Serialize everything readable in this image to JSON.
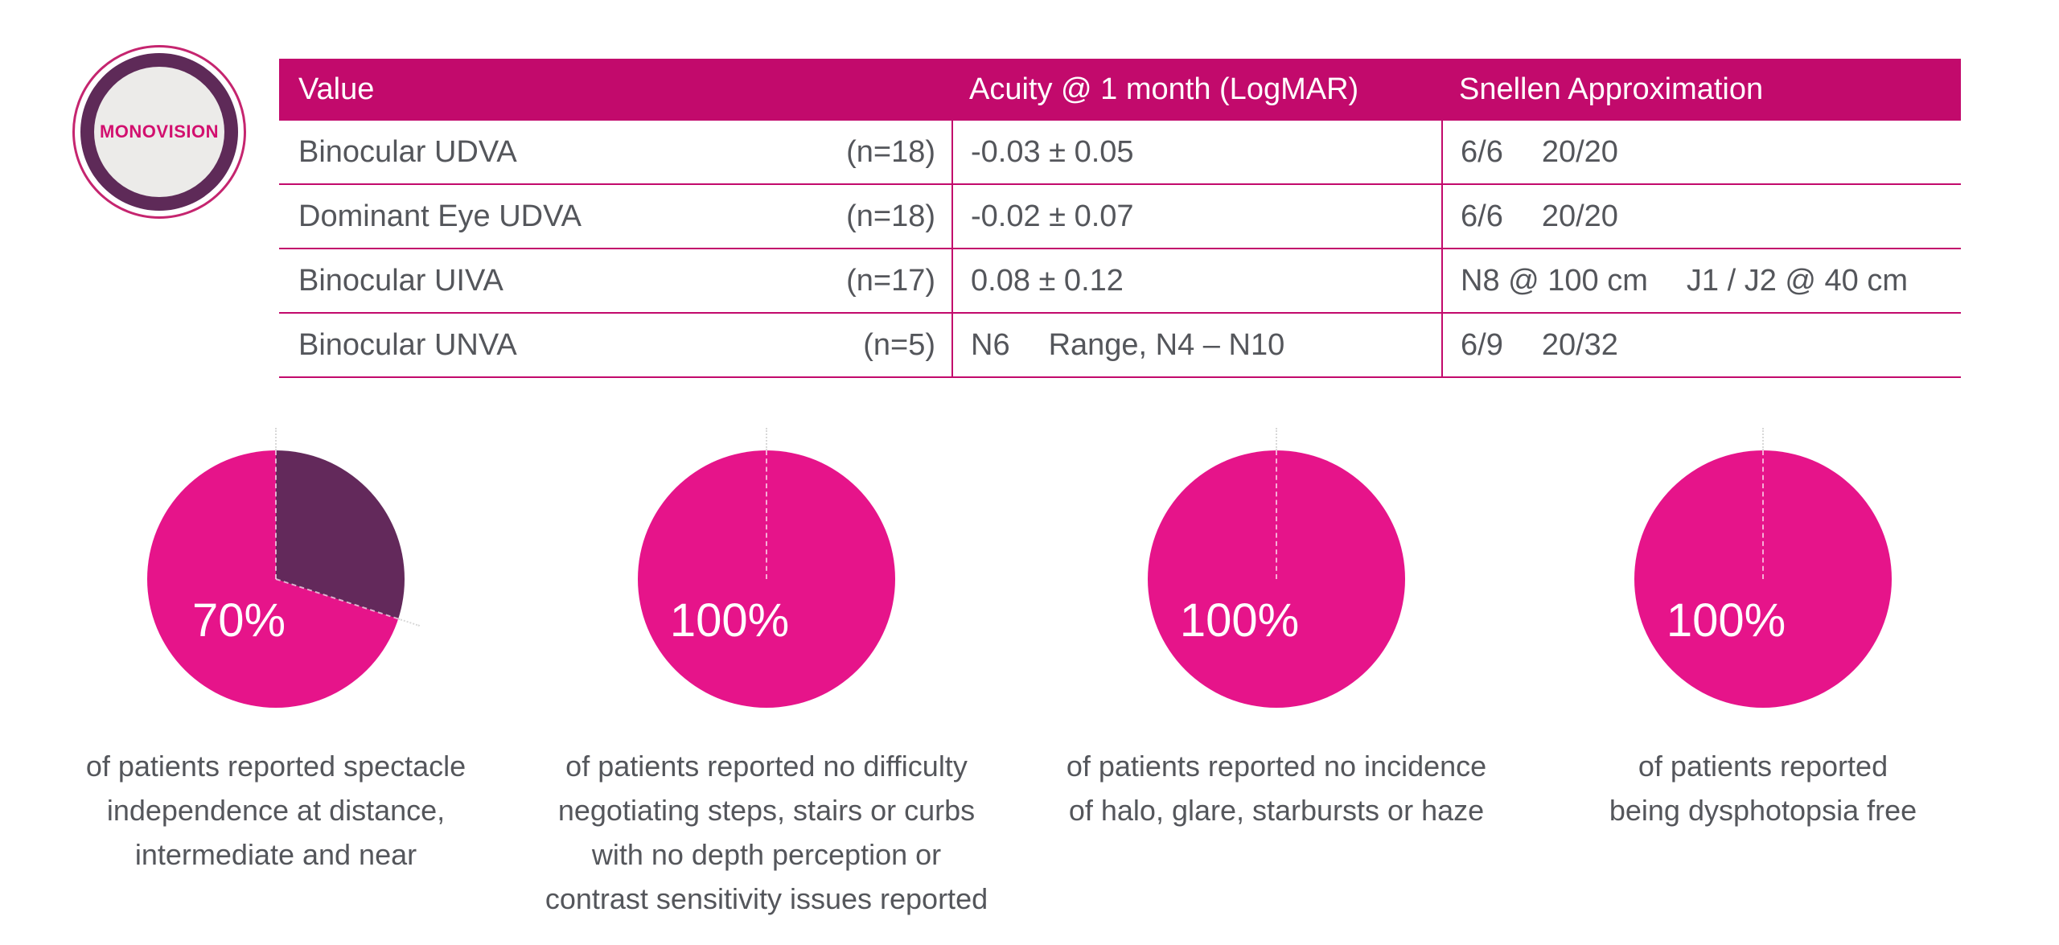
{
  "badge": {
    "label": "MONOVISION"
  },
  "colors": {
    "table_pink": "#C20A6C",
    "pie_pink": "#E6148A",
    "dark_purple": "#63295B",
    "text_gray": "#54565B",
    "badge_face_gray": "#ECEBE9",
    "badge_text_pink": "#D2106F"
  },
  "table": {
    "headers": [
      "Value",
      "Acuity @ 1 month (LogMAR)",
      "Snellen Approximation"
    ],
    "rows": [
      {
        "label": "Binocular UDVA",
        "n": "(n=18)",
        "acuity": [
          "-0.03 ± 0.05"
        ],
        "snellen": [
          "6/6",
          "20/20"
        ]
      },
      {
        "label": "Dominant Eye UDVA",
        "n": "(n=18)",
        "acuity": [
          "-0.02 ± 0.07"
        ],
        "snellen": [
          "6/6",
          "20/20"
        ]
      },
      {
        "label": "Binocular UIVA",
        "n": "(n=17)",
        "acuity": [
          "0.08 ± 0.12"
        ],
        "snellen": [
          "N8 @ 100 cm",
          "J1 / J2 @ 40 cm"
        ]
      },
      {
        "label": "Binocular UNVA",
        "n": "(n=5)",
        "acuity": [
          "N6",
          "Range, N4 – N10"
        ],
        "snellen": [
          "6/9",
          "20/32"
        ]
      }
    ]
  },
  "chart_data": [
    {
      "type": "pie",
      "percent_label": "70%",
      "slices": [
        {
          "value": 30,
          "color": "#63295B"
        },
        {
          "value": 70,
          "color": "#E6148A"
        }
      ],
      "caption_lines": [
        "of patients reported spectacle",
        "independence at distance,",
        "intermediate and near"
      ]
    },
    {
      "type": "pie",
      "percent_label": "100%",
      "slices": [
        {
          "value": 100,
          "color": "#E6148A"
        }
      ],
      "caption_lines": [
        "of patients reported no difficulty",
        "negotiating steps, stairs or curbs",
        "with no depth perception or",
        "contrast sensitivity issues reported"
      ]
    },
    {
      "type": "pie",
      "percent_label": "100%",
      "slices": [
        {
          "value": 100,
          "color": "#E6148A"
        }
      ],
      "caption_lines": [
        "of patients reported no incidence",
        "of halo, glare, starbursts or haze"
      ]
    },
    {
      "type": "pie",
      "percent_label": "100%",
      "slices": [
        {
          "value": 100,
          "color": "#E6148A"
        }
      ],
      "caption_lines": [
        "of patients reported",
        "being dysphotopsia free"
      ]
    }
  ]
}
